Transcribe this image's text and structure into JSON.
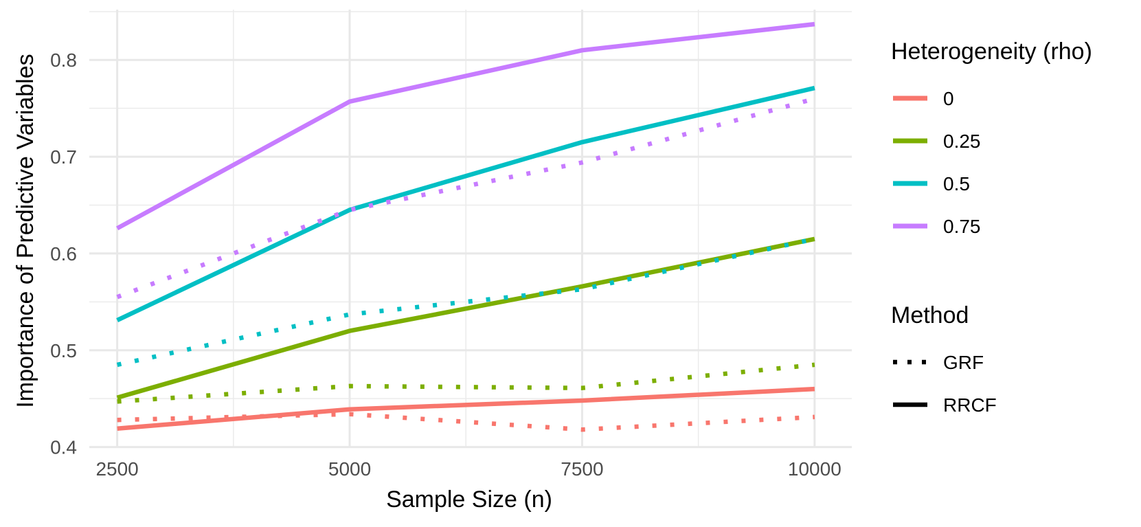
{
  "chart_data": {
    "type": "line",
    "title": "",
    "xlabel": "Sample Size (n)",
    "ylabel": "Importance of Predictive Variables",
    "x": [
      2500,
      5000,
      7500,
      10000
    ],
    "xlim": [
      2200,
      10400
    ],
    "ylim": [
      0.399,
      0.852
    ],
    "x_ticks": [
      2500,
      5000,
      7500,
      10000
    ],
    "x_tick_labels": [
      "2500",
      "5000",
      "7500",
      "10000"
    ],
    "y_ticks": [
      0.4,
      0.5,
      0.6,
      0.7,
      0.8
    ],
    "y_tick_labels": [
      "0.4",
      "0.5",
      "0.6",
      "0.7",
      "0.8"
    ],
    "grid": true,
    "legend_position": "right",
    "colors": {
      "0": "#F8766D",
      "0.25": "#7CAE00",
      "0.5": "#00BFC4",
      "0.75": "#C77CFF"
    },
    "series": [
      {
        "name": "rho=0, RRCF",
        "rho": "0",
        "method": "RRCF",
        "values": [
          0.419,
          0.439,
          0.448,
          0.46
        ]
      },
      {
        "name": "rho=0, GRF",
        "rho": "0",
        "method": "GRF",
        "values": [
          0.428,
          0.434,
          0.418,
          0.431
        ]
      },
      {
        "name": "rho=0.25, RRCF",
        "rho": "0.25",
        "method": "RRCF",
        "values": [
          0.451,
          0.52,
          0.566,
          0.615
        ]
      },
      {
        "name": "rho=0.25, GRF",
        "rho": "0.25",
        "method": "GRF",
        "values": [
          0.447,
          0.463,
          0.461,
          0.485
        ]
      },
      {
        "name": "rho=0.5, RRCF",
        "rho": "0.5",
        "method": "RRCF",
        "values": [
          0.531,
          0.645,
          0.715,
          0.771
        ]
      },
      {
        "name": "rho=0.5, GRF",
        "rho": "0.5",
        "method": "GRF",
        "values": [
          0.485,
          0.537,
          0.563,
          0.615
        ]
      },
      {
        "name": "rho=0.75, RRCF",
        "rho": "0.75",
        "method": "RRCF",
        "values": [
          0.626,
          0.757,
          0.81,
          0.837
        ]
      },
      {
        "name": "rho=0.75, GRF",
        "rho": "0.75",
        "method": "GRF",
        "values": [
          0.555,
          0.645,
          0.694,
          0.76
        ]
      }
    ],
    "legend": {
      "color_title": "Heterogeneity (rho)",
      "color_entries": [
        "0",
        "0.25",
        "0.5",
        "0.75"
      ],
      "linetype_title": "Method",
      "linetype_entries": [
        "GRF",
        "RRCF"
      ]
    }
  }
}
